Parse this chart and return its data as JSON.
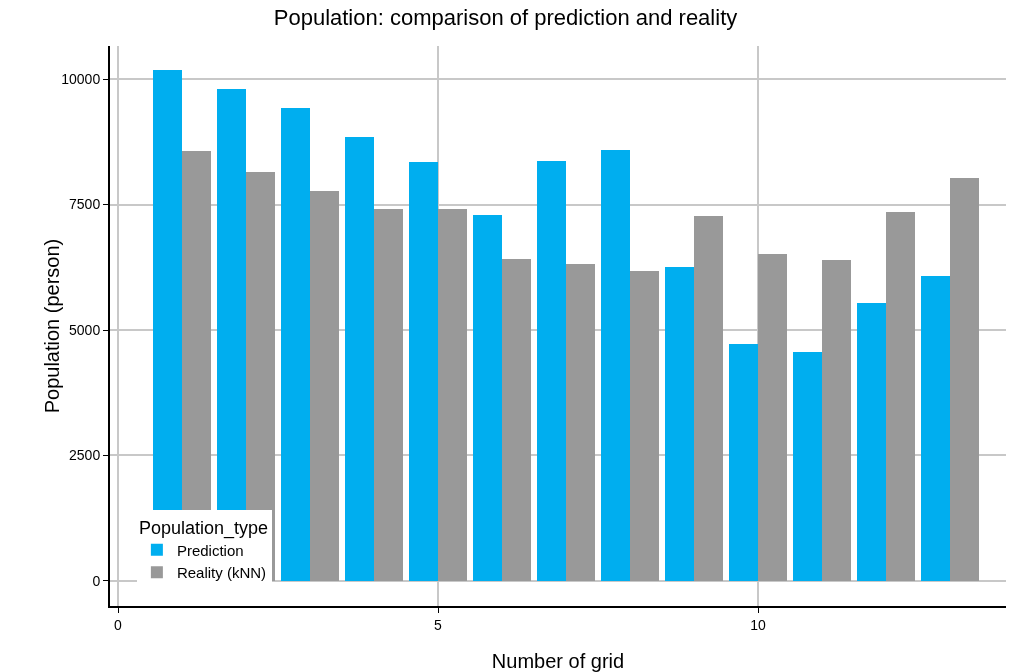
{
  "chart_data": {
    "type": "bar",
    "title": "Population: comparison of prediction and reality",
    "xlabel": "Number of grid",
    "ylabel": "Population (person)",
    "legend_title": "Population_type",
    "x": [
      1,
      2,
      3,
      4,
      5,
      6,
      7,
      8,
      9,
      10,
      11,
      12,
      13
    ],
    "series": [
      {
        "name": "Prediction",
        "color": "#00aeef",
        "values": [
          10180,
          9800,
          9420,
          8840,
          8340,
          7300,
          8360,
          8580,
          6260,
          4720,
          4560,
          5540,
          6080
        ]
      },
      {
        "name": "Reality (kNN)",
        "color": "#999999",
        "values": [
          8560,
          8140,
          7780,
          7420,
          7420,
          6420,
          6320,
          6180,
          7280,
          6520,
          6400,
          7360,
          8020
        ]
      }
    ],
    "xlim": [
      -0.125,
      13.875
    ],
    "xticks": [
      0,
      5,
      10
    ],
    "ylim": [
      -500,
      10660
    ],
    "yticks": [
      0,
      2500,
      5000,
      7500,
      10000
    ],
    "grid": true,
    "legend": "bottom left"
  }
}
